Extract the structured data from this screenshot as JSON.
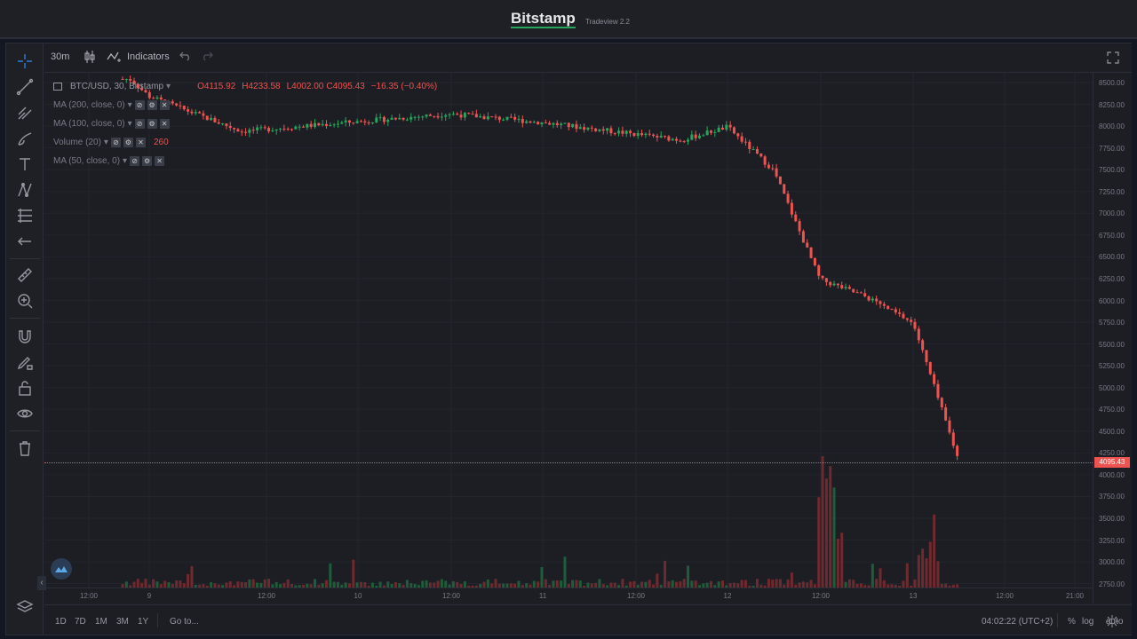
{
  "header": {
    "brand": "Bitstamp",
    "version": "Tradeview 2.2"
  },
  "toolbar": {
    "interval": "30m",
    "indicators_label": "Indicators",
    "icons": [
      "candles-icon",
      "indicators-icon",
      "undo-icon",
      "redo-icon",
      "fullscreen-icon"
    ]
  },
  "left_tools": [
    "crosshair-icon",
    "trendline-icon",
    "pitchfork-icon",
    "brush-icon",
    "text-icon",
    "pattern-icon",
    "fib-icon",
    "arrow-left-icon",
    "ruler-icon",
    "zoom-in-icon",
    "magnet-icon",
    "lock-drawing-icon",
    "unlock-icon",
    "eye-icon",
    "trash-icon",
    "layers-icon"
  ],
  "legend": {
    "symbol": "BTC/USD, 30, Bitstamp",
    "open": "O4115.92",
    "high": "H4233.58",
    "low": "L4002.00",
    "close": "C4095.43",
    "change": "−16.35 (−0.40%)",
    "studies": [
      {
        "label": "MA (200, close, 0)"
      },
      {
        "label": "MA (100, close, 0)"
      },
      {
        "label": "Volume (20)",
        "value": "260"
      },
      {
        "label": "MA (50, close, 0)"
      }
    ]
  },
  "price_axis": {
    "labels": [
      "8500.00",
      "8250.00",
      "8000.00",
      "7750.00",
      "7500.00",
      "7250.00",
      "7000.00",
      "6750.00",
      "6500.00",
      "6250.00",
      "6000.00",
      "5750.00",
      "5500.00",
      "5250.00",
      "5000.00",
      "4750.00",
      "4500.00",
      "4250.00",
      "4000.00",
      "3750.00",
      "3500.00",
      "3250.00",
      "3000.00",
      "2750.00"
    ],
    "last_price": "4095.43"
  },
  "time_axis": {
    "labels": [
      "12:00",
      "9",
      "12:00",
      "10",
      "12:00",
      "11",
      "12:00",
      "12",
      "12:00",
      "13",
      "12:00",
      "21:00"
    ]
  },
  "bottom_bar": {
    "ranges": [
      "1D",
      "7D",
      "1M",
      "3M",
      "1Y"
    ],
    "goto": "Go to...",
    "clock": "04:02:22 (UTC+2)",
    "percent": "%",
    "log": "log",
    "auto": "auto"
  },
  "colors": {
    "up": "#26a65b",
    "down": "#ef5350",
    "background": "#1c1e24"
  },
  "chart_data": {
    "type": "candlestick",
    "symbol": "BTC/USD",
    "ylim": [
      2600,
      8550
    ],
    "key_prices": [
      {
        "time": "8 18:00",
        "price": 8500
      },
      {
        "time": "9 00:00",
        "price": 8300
      },
      {
        "time": "9 12:00",
        "price": 7900
      },
      {
        "time": "10 12:00",
        "price": 8100
      },
      {
        "time": "11 00:00",
        "price": 8000
      },
      {
        "time": "11 18:00",
        "price": 7800
      },
      {
        "time": "12 00:00",
        "price": 7950
      },
      {
        "time": "12 06:00",
        "price": 7450
      },
      {
        "time": "12 12:00",
        "price": 6200
      },
      {
        "time": "12 18:00",
        "price": 6000
      },
      {
        "time": "13 00:00",
        "price": 5700
      },
      {
        "time": "13 06:00",
        "price": 4095.43
      }
    ]
  }
}
